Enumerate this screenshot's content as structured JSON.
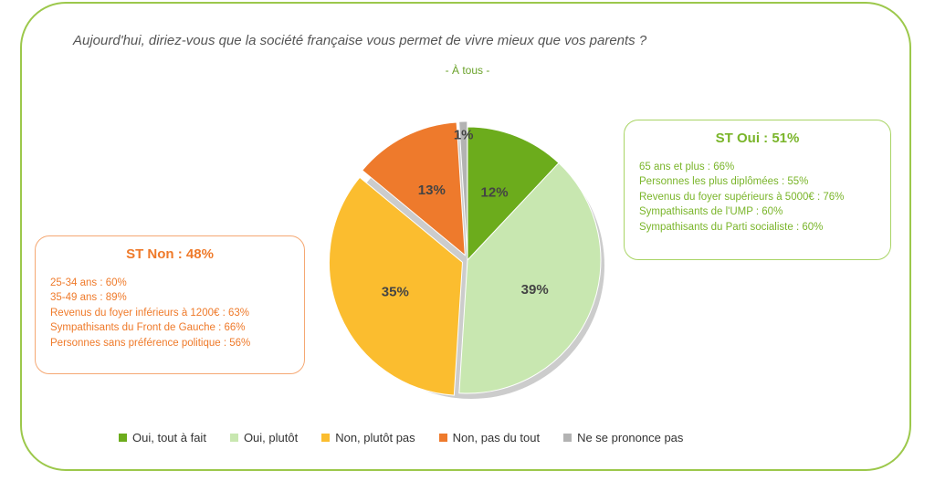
{
  "chart_data": {
    "type": "pie",
    "title": "Aujourd'hui, diriez-vous que la société française vous permet de vivre mieux que vos parents ?",
    "subtitle": "- À tous -",
    "series": [
      {
        "name": "Oui, tout à fait",
        "value": 12,
        "label": "12%",
        "color": "#6cac1c"
      },
      {
        "name": "Oui, plutôt",
        "value": 39,
        "label": "39%",
        "color": "#c8e7b0"
      },
      {
        "name": "Non, plutôt pas",
        "value": 35,
        "label": "35%",
        "color": "#fbbd2f"
      },
      {
        "name": "Non, pas du tout",
        "value": 13,
        "label": "13%",
        "color": "#ee7a2c"
      },
      {
        "name": "Ne se prononce pas",
        "value": 1,
        "label": "1%",
        "color": "#b3b3b3"
      }
    ],
    "legend_position": "bottom"
  },
  "oui_box": {
    "title": "ST Oui : 51%",
    "lines": [
      "65 ans et plus : 66%",
      "Personnes les plus diplômées : 55%",
      "Revenus du foyer supérieurs à 5000€ : 76%",
      "Sympathisants de l'UMP : 60%",
      "Sympathisants du Parti socialiste : 60%"
    ]
  },
  "non_box": {
    "title": "ST Non : 48%",
    "lines": [
      "25-34 ans : 60%",
      "35-49 ans : 89%",
      "Revenus du foyer inférieurs à 1200€ : 63%",
      "Sympathisants du Front de Gauche : 66%",
      "Personnes sans préférence politique : 56%"
    ]
  }
}
